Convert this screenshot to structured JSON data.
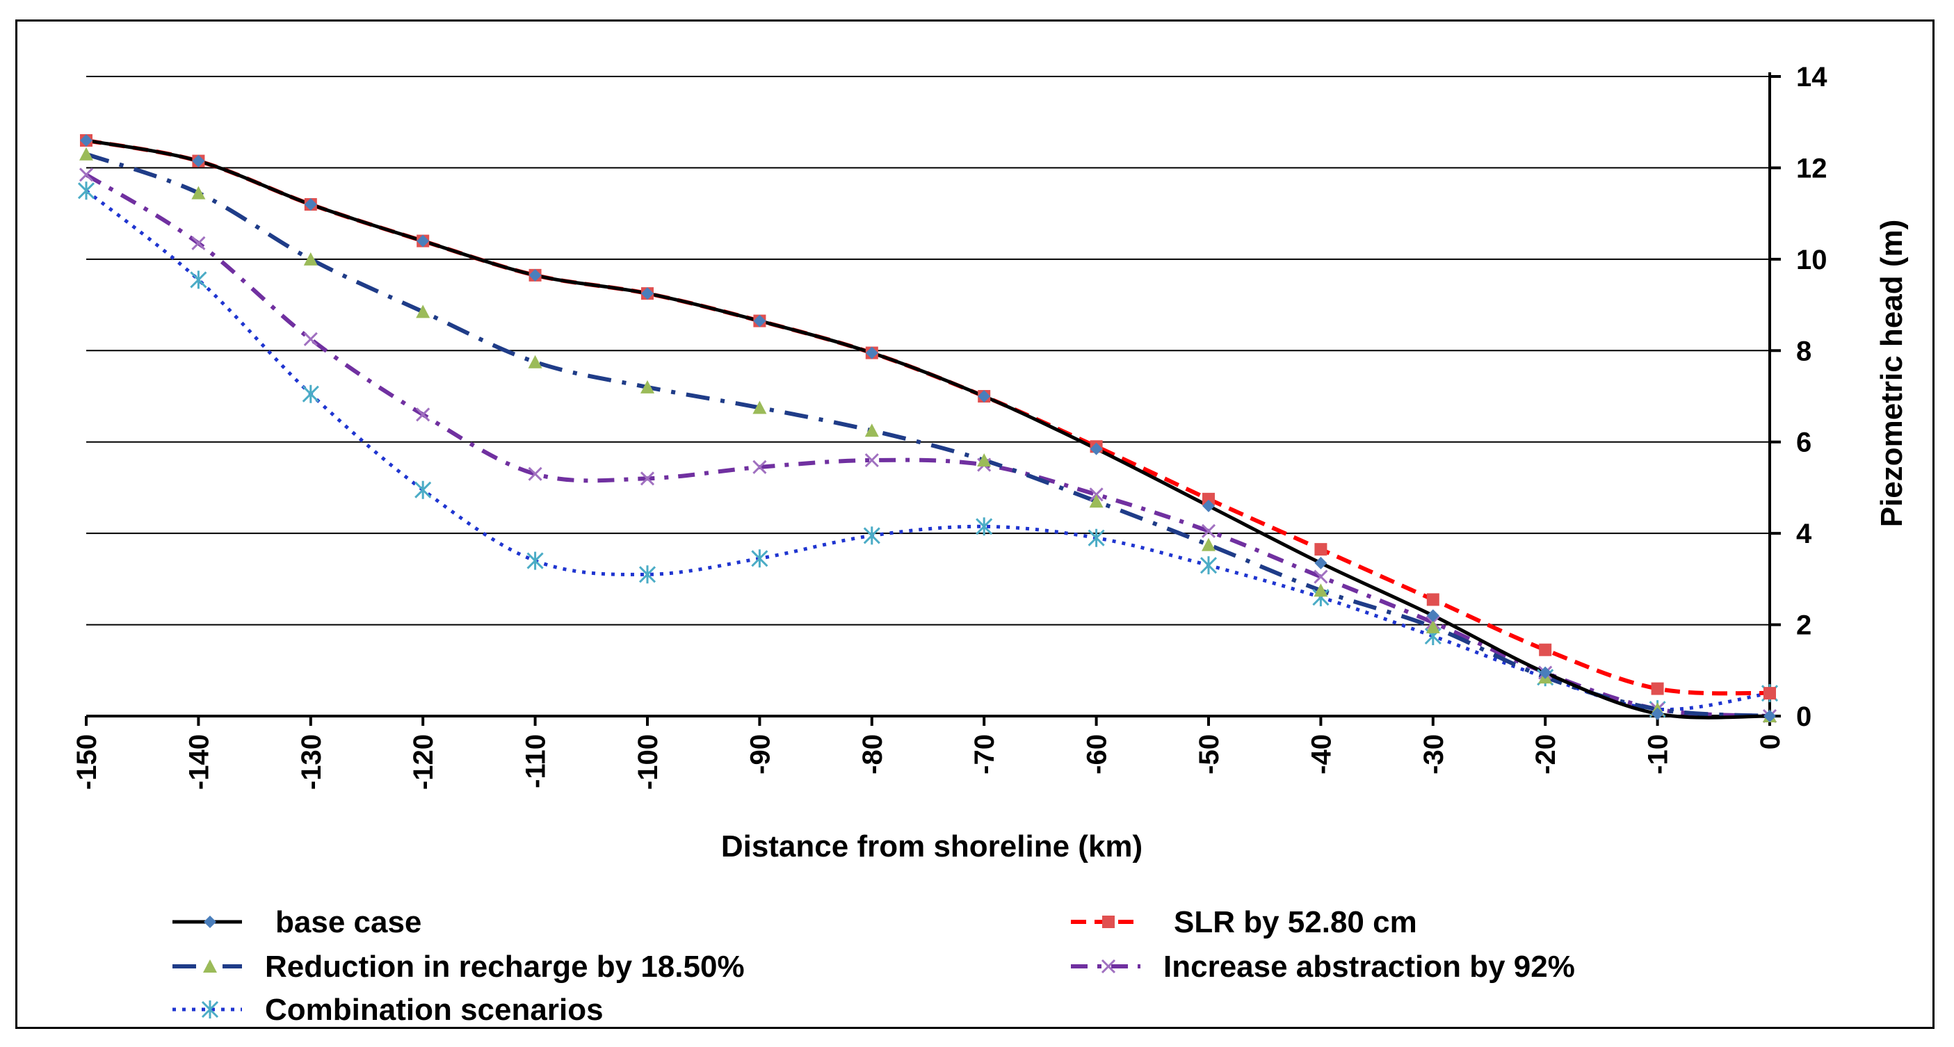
{
  "chart_data": {
    "type": "line",
    "title": "",
    "xlabel": "Distance from shoreline (km)",
    "ylabel": "Piezometric head (m)",
    "xlim": [
      -150,
      0
    ],
    "ylim": [
      0,
      14
    ],
    "x": [
      -150,
      -140,
      -130,
      -120,
      -110,
      -100,
      -90,
      -80,
      -70,
      -60,
      -50,
      -40,
      -30,
      -20,
      -10,
      0
    ],
    "x_ticks": [
      "-150",
      "-140",
      "-130",
      "-120",
      "-110",
      "-100",
      "-90",
      "-80",
      "-70",
      "-60",
      "-50",
      "-40",
      "-30",
      "-20",
      "-10",
      "0"
    ],
    "y_ticks": [
      "0",
      "2",
      "4",
      "6",
      "8",
      "10",
      "12",
      "14"
    ],
    "grid": true,
    "y_axis_position": "right",
    "legend_position": "bottom",
    "series": [
      {
        "name": "base case",
        "color": "#000000",
        "marker": "diamond",
        "marker_color": "#4a7ebb",
        "dash": "solid",
        "values": [
          12.6,
          12.15,
          11.2,
          10.4,
          9.65,
          9.25,
          8.65,
          7.95,
          7.0,
          5.85,
          4.6,
          3.35,
          2.2,
          0.95,
          0.05,
          0.0
        ]
      },
      {
        "name": "SLR by 52.80 cm",
        "color": "#ff0000",
        "marker": "square",
        "marker_color": "#e05050",
        "dash": "dashed",
        "values": [
          12.6,
          12.15,
          11.2,
          10.4,
          9.65,
          9.25,
          8.65,
          7.95,
          7.0,
          5.9,
          4.75,
          3.65,
          2.55,
          1.45,
          0.6,
          0.5
        ]
      },
      {
        "name": "Reduction in recharge by 18.50%",
        "color": "#1f3c88",
        "marker": "triangle",
        "marker_color": "#9bbb59",
        "dash": "longdashdot",
        "values": [
          12.3,
          11.45,
          10.0,
          8.85,
          7.75,
          7.2,
          6.75,
          6.25,
          5.6,
          4.7,
          3.75,
          2.75,
          1.95,
          0.85,
          0.15,
          0.0
        ]
      },
      {
        "name": "Increase abstraction by 92%",
        "color": "#7030a0",
        "marker": "x",
        "marker_color": "#a070c0",
        "dash": "dashdot",
        "values": [
          11.85,
          10.35,
          8.25,
          6.6,
          5.3,
          5.2,
          5.45,
          5.6,
          5.5,
          4.85,
          4.05,
          3.05,
          2.05,
          0.95,
          0.15,
          0.0
        ]
      },
      {
        "name": "Combination scenarios",
        "color": "#1f35d0",
        "marker": "asterisk",
        "marker_color": "#4bacc6",
        "dash": "dotted",
        "values": [
          11.5,
          9.55,
          7.05,
          4.95,
          3.4,
          3.1,
          3.45,
          3.95,
          4.15,
          3.9,
          3.3,
          2.6,
          1.75,
          0.85,
          0.15,
          0.5
        ]
      }
    ]
  }
}
